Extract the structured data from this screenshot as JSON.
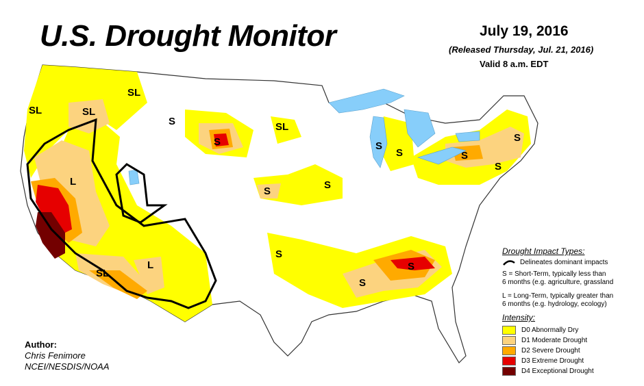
{
  "header": {
    "title": "U.S. Drought Monitor",
    "date": "July 19, 2016",
    "released": "(Released Thursday, Jul. 21, 2016)",
    "valid": "Valid 8 a.m. EDT"
  },
  "map_labels": {
    "sl_west": "SL",
    "sl_oregon": "SL",
    "sl_idaho": "SL",
    "s_wyoming": "S",
    "s_ne_wy": "S",
    "sl_dakota": "SL",
    "l_nevada": "L",
    "l_newmexico": "L",
    "sl_arizona": "SL",
    "s_kansas": "S",
    "s_iowa": "S",
    "s_oklahoma": "S",
    "s_lake_mich": "S",
    "s_michigan": "S",
    "s_newyork": "S",
    "s_newengland": "S",
    "s_nj": "S",
    "s_tennessee": "S",
    "s_mississippi": "S"
  },
  "author": {
    "label": "Author:",
    "name": "Chris Fenimore",
    "org": "NCEI/NESDIS/NOAA"
  },
  "legend": {
    "impact_heading": "Drought Impact Types:",
    "delineates": "Delineates dominant impacts",
    "short_term_1": "S = Short-Term, typically less than",
    "short_term_2": "6 months (e.g. agriculture, grassland",
    "long_term_1": "L = Long-Term, typically greater than",
    "long_term_2": "6 months (e.g. hydrology, ecology)",
    "intensity_heading": "Intensity:",
    "intensity": [
      {
        "label": "D0 Abnormally Dry",
        "color": "#ffff00"
      },
      {
        "label": "D1 Moderate Drought",
        "color": "#fcd37f"
      },
      {
        "label": "D2 Severe Drought",
        "color": "#ffaa00"
      },
      {
        "label": "D3 Extreme Drought",
        "color": "#e60000"
      },
      {
        "label": "D4 Exceptional Drought",
        "color": "#730000"
      }
    ]
  },
  "colors": {
    "d0": "#ffff00",
    "d1": "#fcd37f",
    "d2": "#ffaa00",
    "d3": "#e60000",
    "d4": "#730000",
    "water": "#87cefa",
    "border": "#333333"
  }
}
